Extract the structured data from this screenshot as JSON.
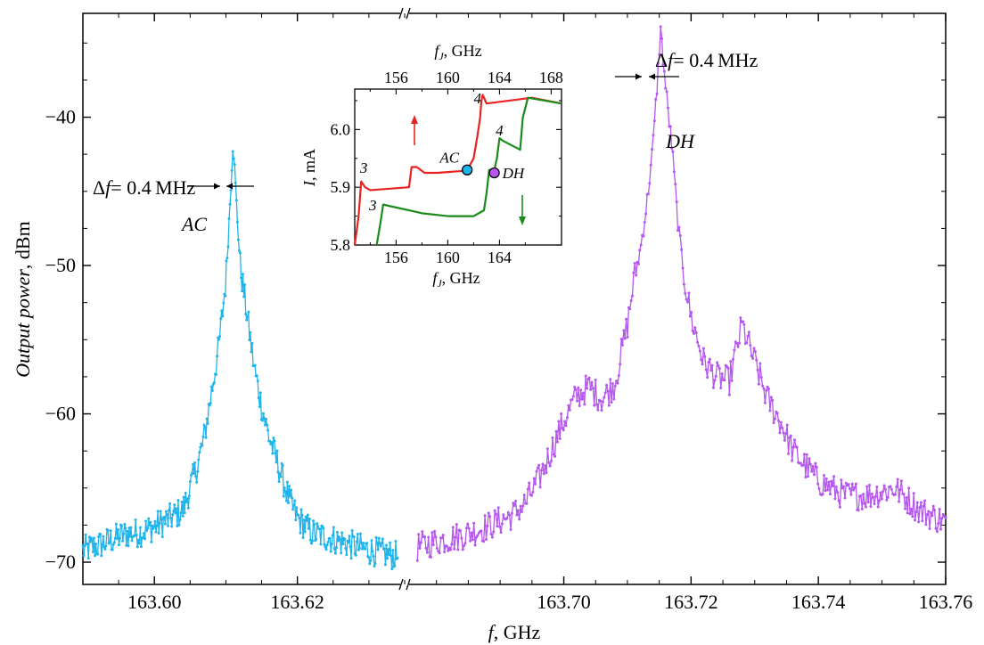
{
  "chart_data": [
    {
      "type": "line",
      "axis_break": true,
      "x_segments": [
        {
          "xlim": [
            163.59,
            163.635
          ],
          "ticks": [
            163.6,
            163.62
          ],
          "tick_labels": [
            "163.60",
            "163.62"
          ]
        },
        {
          "xlim": [
            163.675,
            163.76
          ],
          "ticks": [
            163.7,
            163.72,
            163.74,
            163.76
          ],
          "tick_labels": [
            "163.70",
            "163.72",
            "163.74",
            "163.76"
          ]
        }
      ],
      "ylim": [
        -71.5,
        -33
      ],
      "y_ticks": [
        -70,
        -60,
        -50,
        -40
      ],
      "y_tick_labels": [
        "−70",
        "−60",
        "−50",
        "−40"
      ],
      "xlabel": {
        "italic": "f",
        "rest": ", GHz"
      },
      "ylabel": {
        "italic": "Output power",
        "rest": ", dBm"
      },
      "series": [
        {
          "color": "#1fb5ec",
          "peak_label": "AC",
          "linewidth_label": {
            "prefix": "Δ",
            "italic": "f",
            "rest": "= 0.4 MHz"
          },
          "points": [
            [
              163.59,
              -69.2
            ],
            [
              163.592,
              -68.9
            ],
            [
              163.594,
              -68.5
            ],
            [
              163.596,
              -68.1
            ],
            [
              163.598,
              -68.0
            ],
            [
              163.6,
              -67.6
            ],
            [
              163.602,
              -67.1
            ],
            [
              163.604,
              -66.5
            ],
            [
              163.605,
              -65.0
            ],
            [
              163.606,
              -63.5
            ],
            [
              163.607,
              -61.5
            ],
            [
              163.608,
              -58.5
            ],
            [
              163.609,
              -55.5
            ],
            [
              163.61,
              -51.0
            ],
            [
              163.6105,
              -46.5
            ],
            [
              163.611,
              -41.5
            ],
            [
              163.6115,
              -46.0
            ],
            [
              163.612,
              -50.0
            ],
            [
              163.613,
              -53.5
            ],
            [
              163.614,
              -57.0
            ],
            [
              163.615,
              -59.5
            ],
            [
              163.616,
              -61.5
            ],
            [
              163.617,
              -63.0
            ],
            [
              163.618,
              -64.5
            ],
            [
              163.619,
              -66.0
            ],
            [
              163.62,
              -67.0
            ],
            [
              163.622,
              -68.0
            ],
            [
              163.624,
              -68.3
            ],
            [
              163.626,
              -68.6
            ],
            [
              163.628,
              -68.9
            ],
            [
              163.63,
              -69.2
            ],
            [
              163.632,
              -69.4
            ],
            [
              163.634,
              -69.6
            ]
          ]
        },
        {
          "color": "#b557ee",
          "peak_label": "DH",
          "linewidth_label": {
            "prefix": "Δ",
            "italic": "f",
            "rest": "= 0.4 MHz"
          },
          "points": [
            [
              163.677,
              -69.0
            ],
            [
              163.68,
              -68.6
            ],
            [
              163.684,
              -68.2
            ],
            [
              163.688,
              -67.6
            ],
            [
              163.692,
              -66.8
            ],
            [
              163.694,
              -66.0
            ],
            [
              163.696,
              -64.5
            ],
            [
              163.698,
              -62.5
            ],
            [
              163.7,
              -60.5
            ],
            [
              163.702,
              -58.8
            ],
            [
              163.704,
              -58.2
            ],
            [
              163.706,
              -59.0
            ],
            [
              163.708,
              -58.0
            ],
            [
              163.709,
              -56.0
            ],
            [
              163.71,
              -54.0
            ],
            [
              163.711,
              -51.0
            ],
            [
              163.712,
              -49.0
            ],
            [
              163.713,
              -46.0
            ],
            [
              163.714,
              -42.0
            ],
            [
              163.7148,
              -37.0
            ],
            [
              163.7152,
              -34.0
            ],
            [
              163.716,
              -38.0
            ],
            [
              163.717,
              -42.0
            ],
            [
              163.718,
              -47.5
            ],
            [
              163.719,
              -51.0
            ],
            [
              163.72,
              -53.5
            ],
            [
              163.721,
              -55.0
            ],
            [
              163.722,
              -56.5
            ],
            [
              163.723,
              -57.0
            ],
            [
              163.724,
              -57.5
            ],
            [
              163.726,
              -57.8
            ],
            [
              163.728,
              -54.0
            ],
            [
              163.73,
              -56.5
            ],
            [
              163.732,
              -59.0
            ],
            [
              163.734,
              -60.5
            ],
            [
              163.736,
              -62.5
            ],
            [
              163.738,
              -63.5
            ],
            [
              163.74,
              -64.5
            ],
            [
              163.744,
              -65.5
            ],
            [
              163.748,
              -65.5
            ],
            [
              163.752,
              -65.0
            ],
            [
              163.756,
              -66.5
            ],
            [
              163.76,
              -67.3
            ]
          ]
        }
      ]
    },
    {
      "type": "line",
      "inset": true,
      "xlim": [
        152.8,
        168.8
      ],
      "ylim": [
        5.8,
        6.07
      ],
      "x_ticks": [
        156,
        160,
        164
      ],
      "x_tick_labels": [
        "156",
        "160",
        "164"
      ],
      "top_x_ticks": [
        156,
        160,
        164,
        168
      ],
      "top_x_tick_labels": [
        "156",
        "160",
        "164",
        "168"
      ],
      "y_ticks": [
        5.8,
        5.9,
        6.0
      ],
      "y_tick_labels": [
        "5.8",
        "5.9",
        "6.0"
      ],
      "xlabel": {
        "italic": "f",
        "sub": "J",
        "rest": ", GHz"
      },
      "top_xlabel": {
        "italic": "f",
        "sub": "J",
        "rest": ", GHz"
      },
      "ylabel": {
        "italic": "I",
        "rest": ", mA"
      },
      "series": [
        {
          "color": "#e8231f",
          "direction": "up",
          "points": [
            [
              152.8,
              5.8
            ],
            [
              153.1,
              5.85
            ],
            [
              153.3,
              5.91
            ],
            [
              153.6,
              5.9
            ],
            [
              154.0,
              5.895
            ],
            [
              157.0,
              5.9
            ],
            [
              157.2,
              5.935
            ],
            [
              157.6,
              5.935
            ],
            [
              158.2,
              5.925
            ],
            [
              159.2,
              5.925
            ],
            [
              161.0,
              5.928
            ],
            [
              161.5,
              5.93
            ],
            [
              162.0,
              5.95
            ],
            [
              162.3,
              5.99
            ],
            [
              162.5,
              6.02
            ],
            [
              162.6,
              6.05
            ],
            [
              162.7,
              6.06
            ],
            [
              163.0,
              6.045
            ],
            [
              166.5,
              6.055
            ],
            [
              168.8,
              6.045
            ]
          ]
        },
        {
          "color": "#1a8a1a",
          "direction": "down",
          "points": [
            [
              154.5,
              5.8
            ],
            [
              154.8,
              5.84
            ],
            [
              155.0,
              5.87
            ],
            [
              156.0,
              5.865
            ],
            [
              157.0,
              5.86
            ],
            [
              158.0,
              5.855
            ],
            [
              160.0,
              5.85
            ],
            [
              162.0,
              5.85
            ],
            [
              162.8,
              5.86
            ],
            [
              163.0,
              5.89
            ],
            [
              163.2,
              5.93
            ],
            [
              163.6,
              5.93
            ],
            [
              163.8,
              5.95
            ],
            [
              164.0,
              5.985
            ],
            [
              164.3,
              5.98
            ],
            [
              165.6,
              5.965
            ],
            [
              165.8,
              6.02
            ],
            [
              166.2,
              6.055
            ],
            [
              168.8,
              6.045
            ]
          ]
        }
      ],
      "branch_labels": [
        {
          "text": "3",
          "x": 153.5,
          "y": 5.925
        },
        {
          "text": "4",
          "x": 162.3,
          "y": 6.045
        },
        {
          "text": "3",
          "x": 154.2,
          "y": 5.86
        },
        {
          "text": "4",
          "x": 164.0,
          "y": 5.99
        }
      ],
      "markers": [
        {
          "label": "AC",
          "x": 161.5,
          "y": 5.93,
          "color": "#1fb5ec"
        },
        {
          "label": "DH",
          "x": 163.6,
          "y": 5.925,
          "color": "#b557ee"
        }
      ]
    }
  ]
}
